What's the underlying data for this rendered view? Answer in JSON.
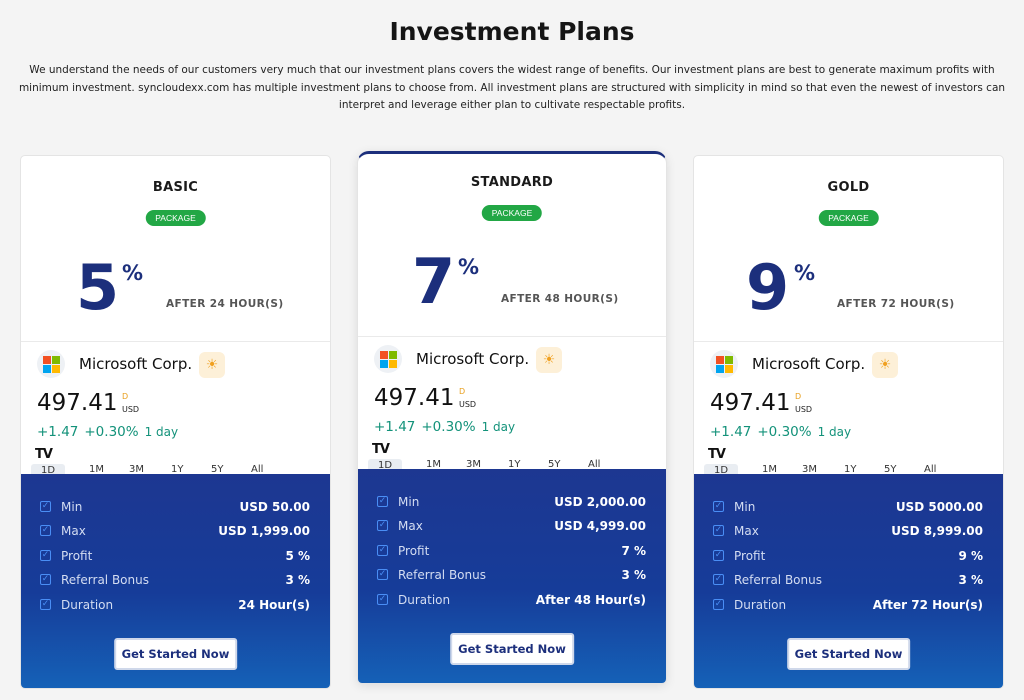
{
  "page": {
    "title": "Investment Plans",
    "intro": "We understand the needs of our customers very much that our investment plans covers the widest range of benefits. Our investment plans are best to generate maximum profits with minimum investment. syncloudexx.com has multiple investment plans to choose from. All investment plans are structured with simplicity in mind so that even the newest of investors can interpret and leverage either plan to cultivate respectable profits."
  },
  "widget": {
    "company": "Microsoft Corp.",
    "price": "497.41",
    "price_sup": "D",
    "currency": "USD",
    "change": "+1.47",
    "change_pct": "+0.30%",
    "period": "1 day",
    "tv_logo": "TV",
    "ranges": [
      "1D",
      "1M",
      "3M",
      "1Y",
      "5Y",
      "All"
    ]
  },
  "plans": [
    {
      "name": "BASIC",
      "badge": "PACKAGE",
      "rate": "5",
      "pct": "%",
      "after": "AFTER 24 HOUR(S)",
      "details": [
        {
          "label": "Min",
          "value": "USD 50.00"
        },
        {
          "label": "Max",
          "value": "USD 1,999.00"
        },
        {
          "label": "Profit",
          "value": "5 %"
        },
        {
          "label": "Referral Bonus",
          "value": "3 %"
        },
        {
          "label": "Duration",
          "value": "24 Hour(s)"
        }
      ],
      "cta": "Get Started Now"
    },
    {
      "name": "STANDARD",
      "badge": "PACKAGE",
      "rate": "7",
      "pct": "%",
      "after": "AFTER 48 HOUR(S)",
      "details": [
        {
          "label": "Min",
          "value": "USD 2,000.00"
        },
        {
          "label": "Max",
          "value": "USD 4,999.00"
        },
        {
          "label": "Profit",
          "value": "7 %"
        },
        {
          "label": "Referral Bonus",
          "value": "3 %"
        },
        {
          "label": "Duration",
          "value": "After 48 Hour(s)"
        }
      ],
      "cta": "Get Started Now"
    },
    {
      "name": "GOLD",
      "badge": "PACKAGE",
      "rate": "9",
      "pct": "%",
      "after": "AFTER 72 HOUR(S)",
      "details": [
        {
          "label": "Min",
          "value": "USD 5000.00"
        },
        {
          "label": "Max",
          "value": "USD 8,999.00"
        },
        {
          "label": "Profit",
          "value": "9 %"
        },
        {
          "label": "Referral Bonus",
          "value": "3 %"
        },
        {
          "label": "Duration",
          "value": "After 72 Hour(s)"
        }
      ],
      "cta": "Get Started Now"
    }
  ],
  "colors": {
    "accent": "#1c2f7c",
    "badge": "#22a745",
    "change_positive": "#13927a"
  },
  "icons": {
    "company_logo": "microsoft-logo-icon",
    "status": "sun-icon",
    "row": "check-square-icon",
    "tradingview": "tradingview-logo-icon"
  }
}
